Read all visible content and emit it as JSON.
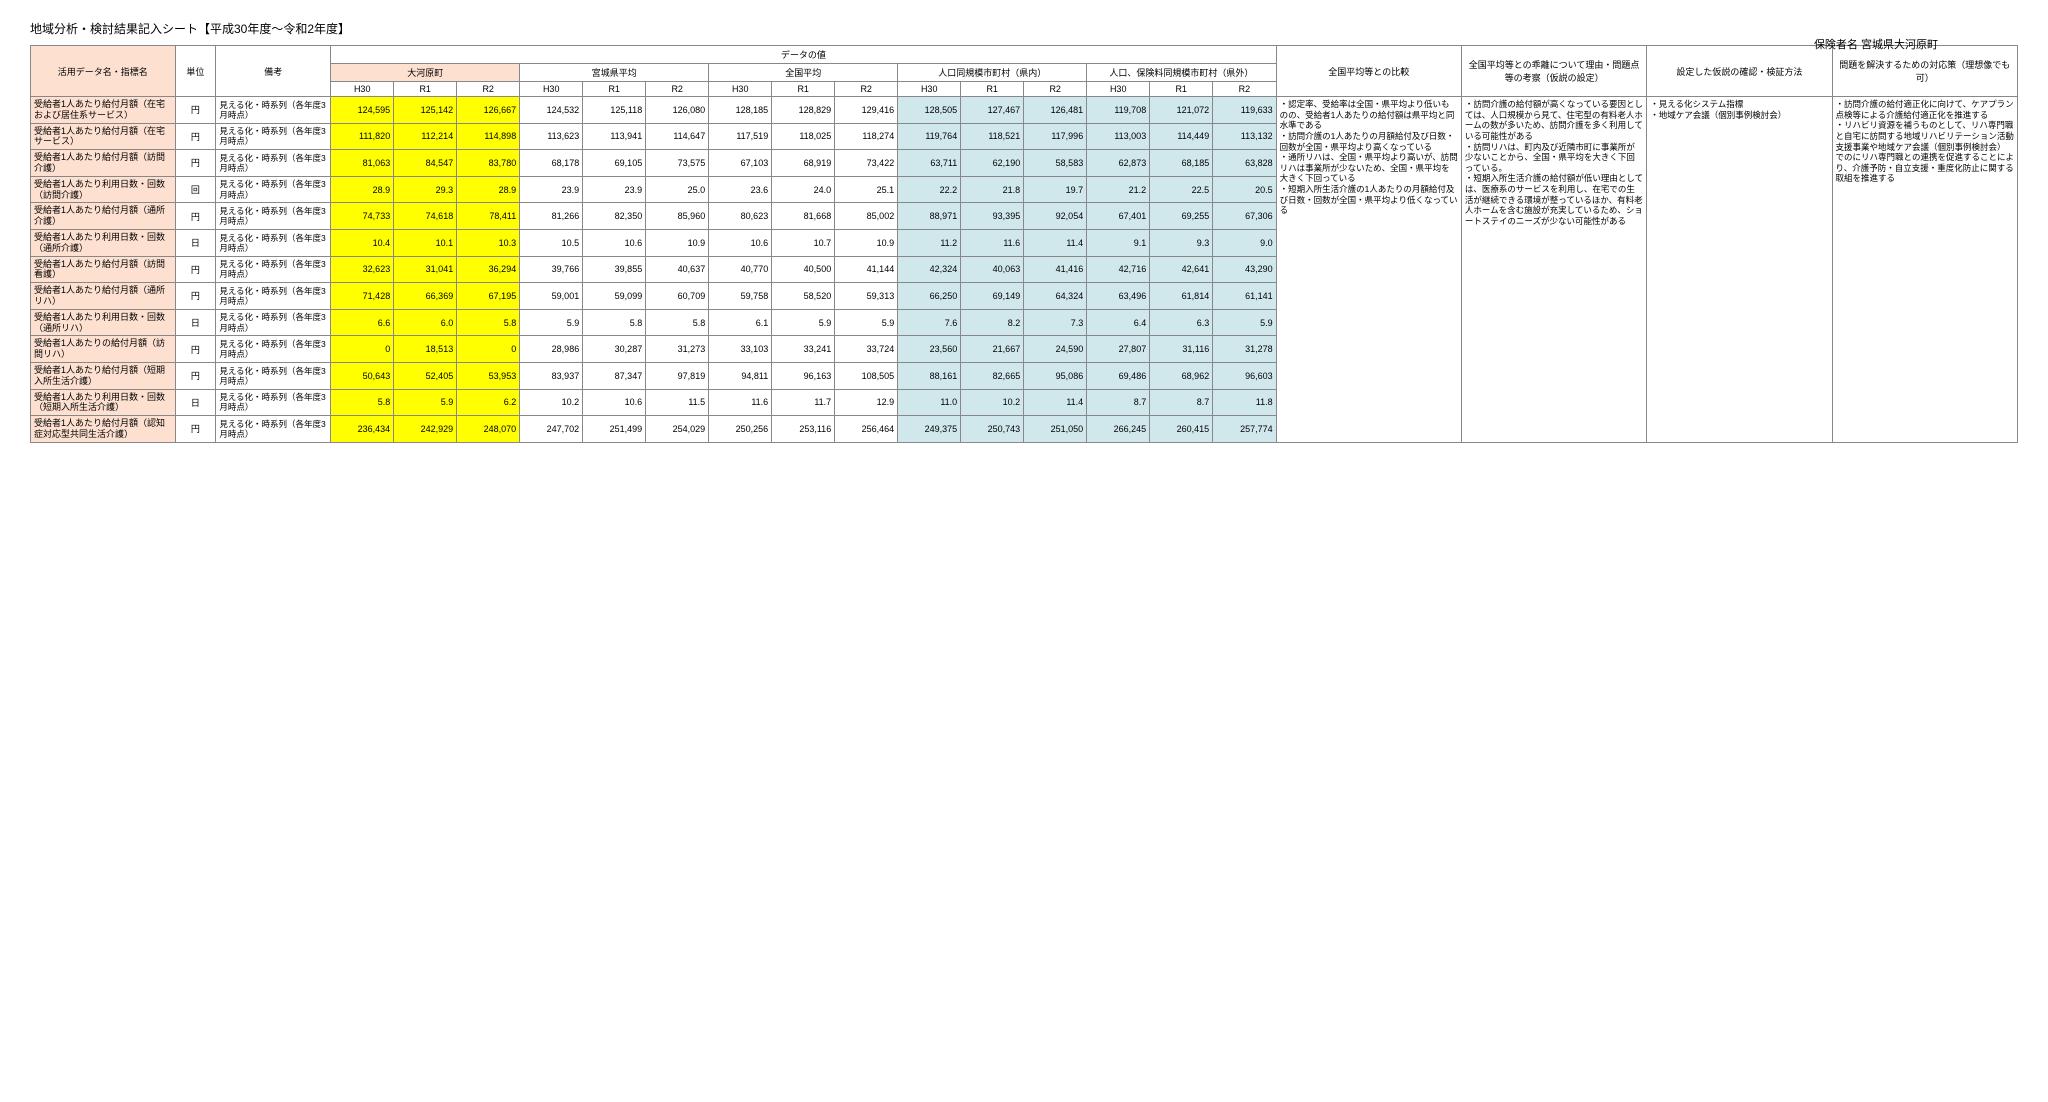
{
  "title": "地域分析・検討結果記入シート【平成30年度～令和2年度】",
  "insurer_label": "保険者名 宮城県大河原町",
  "headers": {
    "name": "活用データ名・指標名",
    "unit": "単位",
    "remark": "備考",
    "data_values": "データの値",
    "groups": [
      "大河原町",
      "宮城県平均",
      "全国平均",
      "人口同規模市町村（県内）",
      "人口、保険料同規模市町村（県外）"
    ],
    "years": [
      "H30",
      "R1",
      "R2"
    ],
    "compare": "全国平均等との比較",
    "gap": "全国平均等との乖離について理由・問題点等の考察（仮説の設定）",
    "hyp": "設定した仮説の確認・検証方法",
    "action": "問題を解決するための対応策（理想像でも可）"
  },
  "remark_text": "見える化・時系列（各年度3月時点）",
  "rows": [
    {
      "label": "受給者1人あたり給付月額（在宅および居住系サービス）",
      "unit": "円",
      "v": [
        [
          "124,595",
          "125,142",
          "126,667"
        ],
        [
          "124,532",
          "125,118",
          "126,080"
        ],
        [
          "128,185",
          "128,829",
          "129,416"
        ],
        [
          "128,505",
          "127,467",
          "126,481"
        ],
        [
          "119,708",
          "121,072",
          "119,633"
        ]
      ]
    },
    {
      "label": "受給者1人あたり給付月額（在宅サービス）",
      "unit": "円",
      "v": [
        [
          "111,820",
          "112,214",
          "114,898"
        ],
        [
          "113,623",
          "113,941",
          "114,647"
        ],
        [
          "117,519",
          "118,025",
          "118,274"
        ],
        [
          "119,764",
          "118,521",
          "117,996"
        ],
        [
          "113,003",
          "114,449",
          "113,132"
        ]
      ]
    },
    {
      "label": "受給者1人あたり給付月額（訪問介護）",
      "unit": "円",
      "v": [
        [
          "81,063",
          "84,547",
          "83,780"
        ],
        [
          "68,178",
          "69,105",
          "73,575"
        ],
        [
          "67,103",
          "68,919",
          "73,422"
        ],
        [
          "63,711",
          "62,190",
          "58,583"
        ],
        [
          "62,873",
          "68,185",
          "63,828"
        ]
      ]
    },
    {
      "label": "受給者1人あたり利用日数・回数（訪問介護）",
      "unit": "回",
      "v": [
        [
          "28.9",
          "29.3",
          "28.9"
        ],
        [
          "23.9",
          "23.9",
          "25.0"
        ],
        [
          "23.6",
          "24.0",
          "25.1"
        ],
        [
          "22.2",
          "21.8",
          "19.7"
        ],
        [
          "21.2",
          "22.5",
          "20.5"
        ]
      ]
    },
    {
      "label": "受給者1人あたり給付月額（通所介護）",
      "unit": "円",
      "v": [
        [
          "74,733",
          "74,618",
          "78,411"
        ],
        [
          "81,266",
          "82,350",
          "85,960"
        ],
        [
          "80,623",
          "81,668",
          "85,002"
        ],
        [
          "88,971",
          "93,395",
          "92,054"
        ],
        [
          "67,401",
          "69,255",
          "67,306"
        ]
      ]
    },
    {
      "label": "受給者1人あたり利用日数・回数（通所介護）",
      "unit": "日",
      "v": [
        [
          "10.4",
          "10.1",
          "10.3"
        ],
        [
          "10.5",
          "10.6",
          "10.9"
        ],
        [
          "10.6",
          "10.7",
          "10.9"
        ],
        [
          "11.2",
          "11.6",
          "11.4"
        ],
        [
          "9.1",
          "9.3",
          "9.0"
        ]
      ]
    },
    {
      "label": "受給者1人あたり給付月額（訪問看護）",
      "unit": "円",
      "v": [
        [
          "32,623",
          "31,041",
          "36,294"
        ],
        [
          "39,766",
          "39,855",
          "40,637"
        ],
        [
          "40,770",
          "40,500",
          "41,144"
        ],
        [
          "42,324",
          "40,063",
          "41,416"
        ],
        [
          "42,716",
          "42,641",
          "43,290"
        ]
      ]
    },
    {
      "label": "受給者1人あたり給付月額（通所リハ）",
      "unit": "円",
      "v": [
        [
          "71,428",
          "66,369",
          "67,195"
        ],
        [
          "59,001",
          "59,099",
          "60,709"
        ],
        [
          "59,758",
          "58,520",
          "59,313"
        ],
        [
          "66,250",
          "69,149",
          "64,324"
        ],
        [
          "63,496",
          "61,814",
          "61,141"
        ]
      ]
    },
    {
      "label": "受給者1人あたり利用日数・回数（通所リハ）",
      "unit": "日",
      "v": [
        [
          "6.6",
          "6.0",
          "5.8"
        ],
        [
          "5.9",
          "5.8",
          "5.8"
        ],
        [
          "6.1",
          "5.9",
          "5.9"
        ],
        [
          "7.6",
          "8.2",
          "7.3"
        ],
        [
          "6.4",
          "6.3",
          "5.9"
        ]
      ]
    },
    {
      "label": "受給者1人あたりの給付月額（訪問リハ）",
      "unit": "円",
      "v": [
        [
          "0",
          "18,513",
          "0"
        ],
        [
          "28,986",
          "30,287",
          "31,273"
        ],
        [
          "33,103",
          "33,241",
          "33,724"
        ],
        [
          "23,560",
          "21,667",
          "24,590"
        ],
        [
          "27,807",
          "31,116",
          "31,278"
        ]
      ]
    },
    {
      "label": "受給者1人あたり給付月額（短期入所生活介護）",
      "unit": "円",
      "v": [
        [
          "50,643",
          "52,405",
          "53,953"
        ],
        [
          "83,937",
          "87,347",
          "97,819"
        ],
        [
          "94,811",
          "96,163",
          "108,505"
        ],
        [
          "88,161",
          "82,665",
          "95,086"
        ],
        [
          "69,486",
          "68,962",
          "96,603"
        ]
      ]
    },
    {
      "label": "受給者1人あたり利用日数・回数（短期入所生活介護）",
      "unit": "日",
      "v": [
        [
          "5.8",
          "5.9",
          "6.2"
        ],
        [
          "10.2",
          "10.6",
          "11.5"
        ],
        [
          "11.6",
          "11.7",
          "12.9"
        ],
        [
          "11.0",
          "10.2",
          "11.4"
        ],
        [
          "8.7",
          "8.7",
          "11.8"
        ]
      ]
    },
    {
      "label": "受給者1人あたり給付月額（認知症対応型共同生活介護）",
      "unit": "円",
      "v": [
        [
          "236,434",
          "242,929",
          "248,070"
        ],
        [
          "247,702",
          "251,499",
          "254,029"
        ],
        [
          "250,256",
          "253,116",
          "256,464"
        ],
        [
          "249,375",
          "250,743",
          "251,050"
        ],
        [
          "266,245",
          "260,415",
          "257,774"
        ]
      ]
    }
  ],
  "compare_text": "・認定率、受給率は全国・県平均より低いものの、受給者1人あたりの給付額は県平均と同水準である\n・訪問介護の1人あたりの月額給付及び日数・回数が全国・県平均より高くなっている\n・通所リハは、全国・県平均より高いが、訪問リハは事業所が少ないため、全国・県平均を大きく下回っている\n・短期入所生活介護の1人あたりの月額給付及び日数・回数が全国・県平均より低くなっている",
  "gap_text": "・訪問介護の給付額が高くなっている要因としては、人口規模から見て、住宅型の有料老人ホームの数が多いため、訪問介護を多く利用している可能性がある\n・訪問リハは、町内及び近隣市町に事業所が少ないことから、全国・県平均を大きく下回っている。\n・短期入所生活介護の給付額が低い理由としては、医療系のサービスを利用し、在宅での生活が継続できる環境が整っているほか、有料老人ホームを含む施設が充実しているため、ショートステイのニーズが少ない可能性がある",
  "hyp_text": "・見える化システム指標\n・地域ケア会議（個別事例検討会）",
  "action_text": "・訪問介護の給付適正化に向けて、ケアプラン点検等による介護給付適正化を推進する\n・リハビリ資源を補うものとして、リハ専門職と自宅に訪問する地域リハビリテーション活動支援事業や地域ケア会議（個別事例検討会）でのにリハ専門職との連携を促進することにより、介護予防・自立支援・重度化防止に関する取組を推進する"
}
